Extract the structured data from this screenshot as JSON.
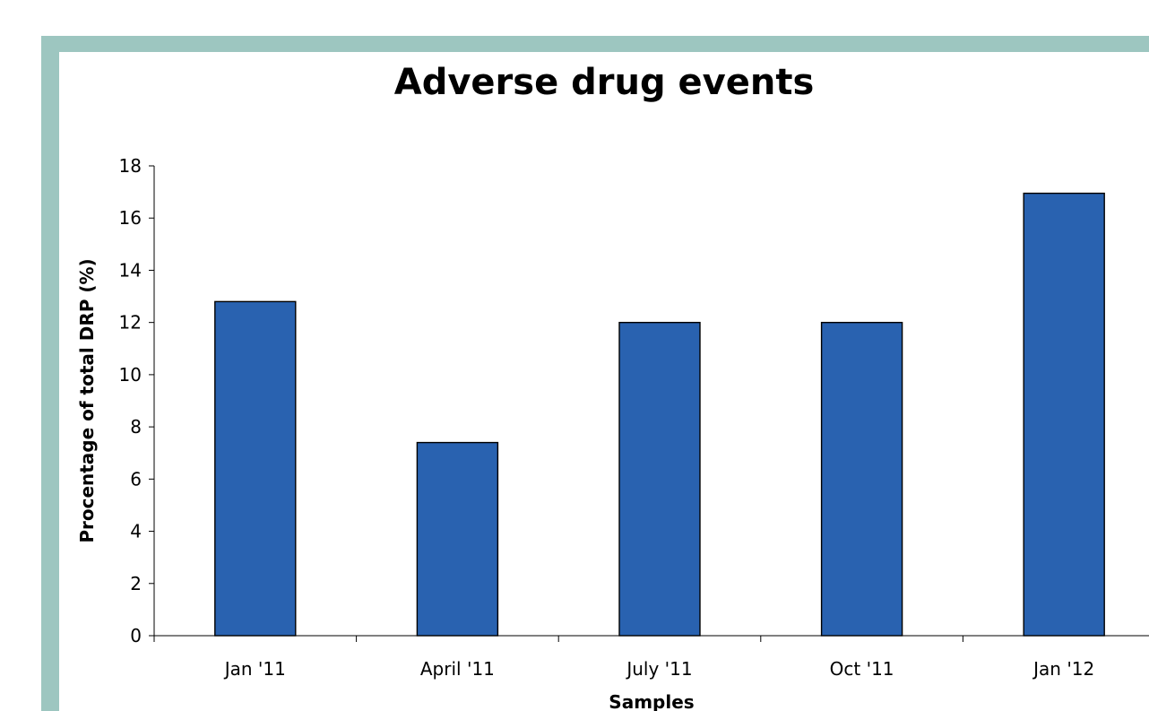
{
  "chart_data": {
    "type": "bar",
    "title": "Adverse drug events",
    "xlabel": "Samples",
    "ylabel": "Procentage of total DRP (%)",
    "categories": [
      "Jan '11",
      "April '11",
      "July '11",
      "Oct '11",
      "Jan '12"
    ],
    "values": [
      12.8,
      7.4,
      12.0,
      12.0,
      16.95
    ],
    "ylim": [
      0,
      18
    ],
    "yticks": [
      0,
      2,
      4,
      6,
      8,
      10,
      12,
      14,
      16,
      18
    ],
    "grid": false,
    "legend": "none",
    "bar_color": "#2962b0",
    "bar_edge_color": "#000000",
    "frame_color": "#9dc6c0"
  }
}
